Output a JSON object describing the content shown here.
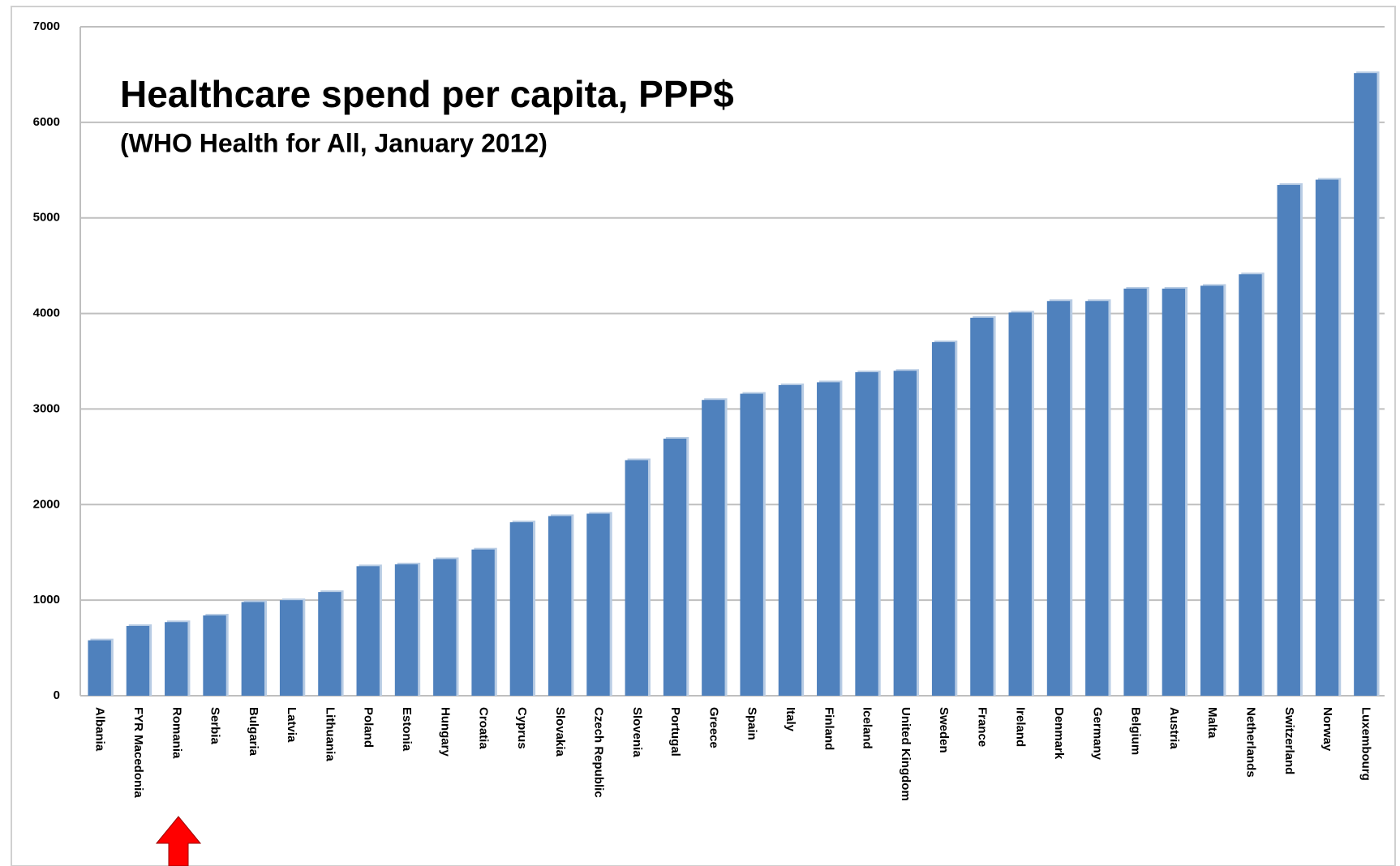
{
  "chart_data": {
    "type": "bar",
    "title": "Healthcare spend per capita, PPP$",
    "subtitle": "(WHO Health for All, January 2012)",
    "categories": [
      "Albania",
      "FYR Macedonia",
      "Romania",
      "Serbia",
      "Bulgaria",
      "Latvia",
      "Lithuania",
      "Poland",
      "Estonia",
      "Hungary",
      "Croatia",
      "Cyprus",
      "Slovakia",
      "Czech Republic",
      "Slovenia",
      "Portugal",
      "Greece",
      "Spain",
      "Italy",
      "Finland",
      "Iceland",
      "United Kingdom",
      "Sweden",
      "France",
      "Ireland",
      "Denmark",
      "Germany",
      "Belgium",
      "Austria",
      "Malta",
      "Netherlands",
      "Switzerland",
      "Norway",
      "Luxembourg"
    ],
    "values": [
      580,
      730,
      770,
      840,
      980,
      1000,
      1085,
      1355,
      1375,
      1430,
      1530,
      1815,
      1880,
      1905,
      2465,
      2690,
      3095,
      3160,
      3250,
      3280,
      3385,
      3400,
      3700,
      3955,
      4010,
      4130,
      4130,
      4260,
      4260,
      4290,
      4410,
      5345,
      5400,
      6515
    ],
    "color": "#4f81bd",
    "ylim": [
      0,
      7000
    ],
    "yticks": [
      0,
      1000,
      2000,
      3000,
      4000,
      5000,
      6000,
      7000
    ],
    "grid": true
  }
}
